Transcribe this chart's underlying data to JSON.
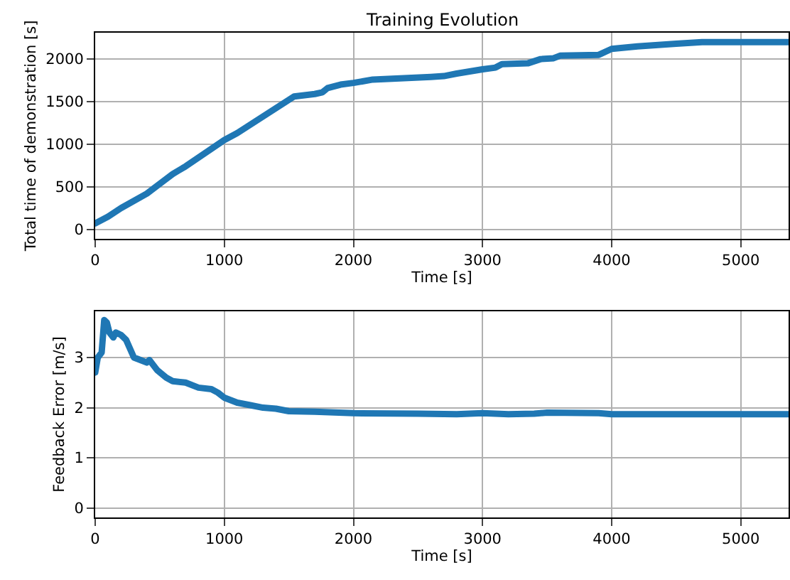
{
  "chart_data": [
    {
      "type": "line",
      "title": "Training Evolution",
      "xlabel": "Time [s]",
      "ylabel": "Total time of demonstration [s]",
      "xlim": [
        0,
        5370
      ],
      "xticks": [
        0,
        1000,
        2000,
        3000,
        4000,
        5000
      ],
      "ylim": [
        -110,
        2310
      ],
      "yticks": [
        0,
        500,
        1000,
        1500,
        2000
      ],
      "grid": true,
      "series": [
        {
          "color": "#1f77b4",
          "x": [
            0,
            100,
            200,
            400,
            600,
            700,
            1000,
            1100,
            1540,
            1700,
            1760,
            1800,
            1900,
            2000,
            2150,
            2300,
            2600,
            2700,
            2800,
            3000,
            3100,
            3150,
            3350,
            3450,
            3550,
            3600,
            3900,
            4000,
            4200,
            4500,
            4700,
            5370
          ],
          "values": [
            70,
            150,
            250,
            420,
            650,
            740,
            1050,
            1130,
            1560,
            1590,
            1610,
            1660,
            1700,
            1720,
            1760,
            1770,
            1790,
            1800,
            1830,
            1880,
            1900,
            1940,
            1950,
            2000,
            2010,
            2040,
            2050,
            2120,
            2150,
            2180,
            2200,
            2200
          ]
        }
      ]
    },
    {
      "type": "line",
      "xlabel": "Time [s]",
      "ylabel": "Feedback Error [m/s]",
      "xlim": [
        0,
        5370
      ],
      "xticks": [
        0,
        1000,
        2000,
        3000,
        4000,
        5000
      ],
      "ylim": [
        -0.19,
        3.92
      ],
      "yticks": [
        0,
        1,
        2,
        3
      ],
      "grid": true,
      "series": [
        {
          "color": "#1f77b4",
          "x": [
            0,
            20,
            50,
            70,
            90,
            110,
            140,
            160,
            200,
            240,
            300,
            350,
            400,
            420,
            480,
            550,
            600,
            700,
            800,
            900,
            950,
            1000,
            1100,
            1200,
            1300,
            1400,
            1500,
            1700,
            2000,
            2500,
            2800,
            3000,
            3200,
            3400,
            3500,
            3900,
            4000,
            5370
          ],
          "values": [
            2.7,
            3.0,
            3.1,
            3.75,
            3.7,
            3.5,
            3.4,
            3.5,
            3.45,
            3.35,
            3.0,
            2.95,
            2.9,
            2.95,
            2.75,
            2.6,
            2.53,
            2.5,
            2.4,
            2.37,
            2.3,
            2.2,
            2.1,
            2.05,
            2.0,
            1.98,
            1.93,
            1.92,
            1.89,
            1.88,
            1.87,
            1.89,
            1.87,
            1.88,
            1.9,
            1.89,
            1.87,
            1.87
          ]
        }
      ]
    }
  ]
}
